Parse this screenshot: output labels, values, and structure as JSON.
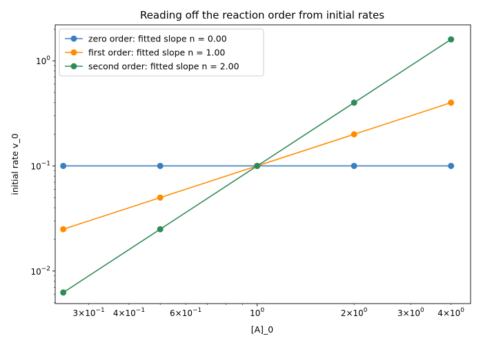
{
  "chart_data": {
    "type": "line",
    "title": "Reading off the reaction order from initial rates",
    "xlabel": "[A]_0",
    "ylabel": "initial rate v_0",
    "xscale": "log",
    "yscale": "log",
    "xlim": [
      0.236,
      4.6
    ],
    "ylim": [
      0.0049,
      2.2
    ],
    "legend_position": "top-left",
    "grid": false,
    "x": [
      0.25,
      0.5,
      1,
      2,
      4
    ],
    "series": [
      {
        "name": "zero order: fitted slope n = 0.00",
        "color": "#3a7ebf",
        "values": [
          0.1,
          0.1,
          0.1,
          0.1,
          0.1
        ]
      },
      {
        "name": "first order: fitted slope n = 1.00",
        "color": "#ff8c00",
        "values": [
          0.025,
          0.05,
          0.1,
          0.2,
          0.4
        ]
      },
      {
        "name": "second order: fitted slope n = 2.00",
        "color": "#2e8b57",
        "values": [
          0.00625,
          0.025,
          0.1,
          0.4,
          1.6
        ]
      }
    ],
    "xticks": [
      {
        "value": 0.3,
        "mantissa": "3",
        "exp": "−1"
      },
      {
        "value": 0.4,
        "mantissa": "4",
        "exp": "−1"
      },
      {
        "value": 0.6,
        "mantissa": "6",
        "exp": "−1"
      },
      {
        "value": 1,
        "mantissa": "",
        "exp": "0"
      },
      {
        "value": 2,
        "mantissa": "2",
        "exp": "0"
      },
      {
        "value": 3,
        "mantissa": "3",
        "exp": "0"
      },
      {
        "value": 4,
        "mantissa": "4",
        "exp": "0"
      }
    ],
    "yticks": [
      {
        "value": 0.01,
        "mantissa": "",
        "exp": "−2"
      },
      {
        "value": 0.1,
        "mantissa": "",
        "exp": "−1"
      },
      {
        "value": 1,
        "mantissa": "",
        "exp": "0"
      }
    ]
  }
}
